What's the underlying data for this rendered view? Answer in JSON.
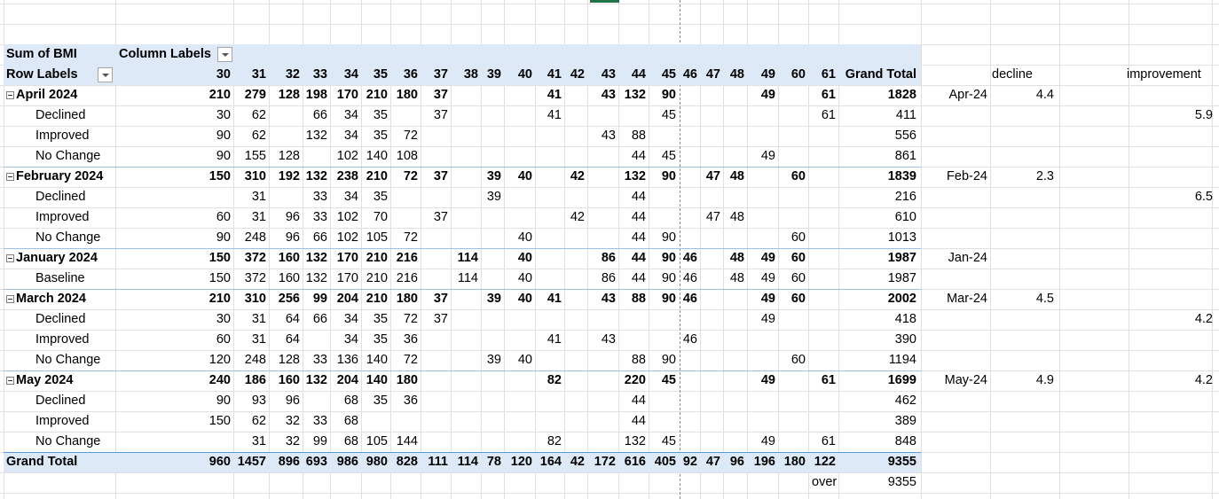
{
  "pivot": {
    "value_field": "Sum of BMI",
    "column_labels": "Column Labels",
    "row_labels": "Row Labels",
    "columns": [
      "30",
      "31",
      "32",
      "33",
      "34",
      "35",
      "36",
      "37",
      "38",
      "39",
      "40",
      "41",
      "42",
      "43",
      "44",
      "45",
      "46",
      "47",
      "48",
      "49",
      "60",
      "61",
      "Grand Total"
    ],
    "rows": [
      {
        "label": "April 2024",
        "type": "group",
        "values": [
          "210",
          "279",
          "128",
          "198",
          "170",
          "210",
          "180",
          "37",
          "",
          "",
          "",
          "41",
          "",
          "43",
          "132",
          "90",
          "",
          "",
          "",
          "49",
          "",
          "61",
          "1828"
        ]
      },
      {
        "label": "Declined",
        "type": "item",
        "values": [
          "30",
          "62",
          "",
          "66",
          "34",
          "35",
          "",
          "37",
          "",
          "",
          "",
          "41",
          "",
          "",
          "",
          "45",
          "",
          "",
          "",
          "",
          "",
          "61",
          "411"
        ]
      },
      {
        "label": "Improved",
        "type": "item",
        "values": [
          "90",
          "62",
          "",
          "132",
          "34",
          "35",
          "72",
          "",
          "",
          "",
          "",
          "",
          "",
          "43",
          "88",
          "",
          "",
          "",
          "",
          "",
          "",
          "",
          "556"
        ]
      },
      {
        "label": "No Change",
        "type": "item",
        "values": [
          "90",
          "155",
          "128",
          "",
          "102",
          "140",
          "108",
          "",
          "",
          "",
          "",
          "",
          "",
          "",
          "44",
          "45",
          "",
          "",
          "",
          "49",
          "",
          "",
          "861"
        ]
      },
      {
        "label": "February 2024",
        "type": "group",
        "values": [
          "150",
          "310",
          "192",
          "132",
          "238",
          "210",
          "72",
          "37",
          "",
          "39",
          "40",
          "",
          "42",
          "",
          "132",
          "90",
          "",
          "47",
          "48",
          "",
          "60",
          "",
          "1839"
        ]
      },
      {
        "label": "Declined",
        "type": "item",
        "values": [
          "",
          "31",
          "",
          "33",
          "34",
          "35",
          "",
          "",
          "",
          "39",
          "",
          "",
          "",
          "",
          "44",
          "",
          "",
          "",
          "",
          "",
          "",
          "",
          "216"
        ]
      },
      {
        "label": "Improved",
        "type": "item",
        "values": [
          "60",
          "31",
          "96",
          "33",
          "102",
          "70",
          "",
          "37",
          "",
          "",
          "",
          "",
          "42",
          "",
          "44",
          "",
          "",
          "47",
          "48",
          "",
          "",
          "",
          "610"
        ]
      },
      {
        "label": "No Change",
        "type": "item",
        "values": [
          "90",
          "248",
          "96",
          "66",
          "102",
          "105",
          "72",
          "",
          "",
          "",
          "40",
          "",
          "",
          "",
          "44",
          "90",
          "",
          "",
          "",
          "",
          "60",
          "",
          "1013"
        ]
      },
      {
        "label": "January 2024",
        "type": "group",
        "values": [
          "150",
          "372",
          "160",
          "132",
          "170",
          "210",
          "216",
          "",
          "114",
          "",
          "40",
          "",
          "",
          "86",
          "44",
          "90",
          "46",
          "",
          "48",
          "49",
          "60",
          "",
          "1987"
        ]
      },
      {
        "label": "Baseline",
        "type": "item",
        "values": [
          "150",
          "372",
          "160",
          "132",
          "170",
          "210",
          "216",
          "",
          "114",
          "",
          "40",
          "",
          "",
          "86",
          "44",
          "90",
          "46",
          "",
          "48",
          "49",
          "60",
          "",
          "1987"
        ]
      },
      {
        "label": "March 2024",
        "type": "group",
        "values": [
          "210",
          "310",
          "256",
          "99",
          "204",
          "210",
          "180",
          "37",
          "",
          "39",
          "40",
          "41",
          "",
          "43",
          "88",
          "90",
          "46",
          "",
          "",
          "49",
          "60",
          "",
          "2002"
        ]
      },
      {
        "label": "Declined",
        "type": "item",
        "values": [
          "30",
          "31",
          "64",
          "66",
          "34",
          "35",
          "72",
          "37",
          "",
          "",
          "",
          "",
          "",
          "",
          "",
          "",
          "",
          "",
          "",
          "49",
          "",
          "",
          "418"
        ]
      },
      {
        "label": "Improved",
        "type": "item",
        "values": [
          "60",
          "31",
          "64",
          "",
          "34",
          "35",
          "36",
          "",
          "",
          "",
          "",
          "41",
          "",
          "43",
          "",
          "",
          "46",
          "",
          "",
          "",
          "",
          "",
          "390"
        ]
      },
      {
        "label": "No Change",
        "type": "item",
        "values": [
          "120",
          "248",
          "128",
          "33",
          "136",
          "140",
          "72",
          "",
          "",
          "39",
          "40",
          "",
          "",
          "",
          "88",
          "90",
          "",
          "",
          "",
          "",
          "60",
          "",
          "1194"
        ]
      },
      {
        "label": "May 2024",
        "type": "group",
        "values": [
          "240",
          "186",
          "160",
          "132",
          "204",
          "140",
          "180",
          "",
          "",
          "",
          "",
          "82",
          "",
          "",
          "220",
          "45",
          "",
          "",
          "",
          "49",
          "",
          "61",
          "1699"
        ]
      },
      {
        "label": "Declined",
        "type": "item",
        "values": [
          "90",
          "93",
          "96",
          "",
          "68",
          "35",
          "36",
          "",
          "",
          "",
          "",
          "",
          "",
          "",
          "44",
          "",
          "",
          "",
          "",
          "",
          "",
          "",
          "462"
        ]
      },
      {
        "label": "Improved",
        "type": "item",
        "values": [
          "150",
          "62",
          "32",
          "33",
          "68",
          "",
          "",
          "",
          "",
          "",
          "",
          "",
          "",
          "",
          "44",
          "",
          "",
          "",
          "",
          "",
          "",
          "",
          "389"
        ]
      },
      {
        "label": "No Change",
        "type": "item",
        "values": [
          "",
          "31",
          "32",
          "99",
          "68",
          "105",
          "144",
          "",
          "",
          "",
          "",
          "82",
          "",
          "",
          "132",
          "45",
          "",
          "",
          "",
          "49",
          "",
          "61",
          "848"
        ]
      }
    ],
    "grand_total": {
      "label": "Grand Total",
      "values": [
        "960",
        "1457",
        "896",
        "693",
        "986",
        "980",
        "828",
        "111",
        "114",
        "78",
        "120",
        "164",
        "42",
        "172",
        "616",
        "405",
        "92",
        "47",
        "96",
        "196",
        "180",
        "122",
        "9355"
      ]
    },
    "below": {
      "label": "over",
      "value": "9355"
    }
  },
  "side": {
    "headers": {
      "decline": "decline",
      "improvement": "improvement"
    },
    "rows": [
      {
        "row": 0,
        "month": "Apr-24",
        "decline": "4.4",
        "improvement": ""
      },
      {
        "row": 1,
        "month": "",
        "decline": "",
        "improvement": "5.9"
      },
      {
        "row": 4,
        "month": "Feb-24",
        "decline": "2.3",
        "improvement": ""
      },
      {
        "row": 5,
        "month": "",
        "decline": "",
        "improvement": "6.5"
      },
      {
        "row": 8,
        "month": "Jan-24",
        "decline": "",
        "improvement": ""
      },
      {
        "row": 10,
        "month": "Mar-24",
        "decline": "4.5",
        "improvement": ""
      },
      {
        "row": 11,
        "month": "",
        "decline": "",
        "improvement": "4.2"
      },
      {
        "row": 14,
        "month": "May-24",
        "decline": "4.9",
        "improvement": "4.2"
      }
    ]
  }
}
